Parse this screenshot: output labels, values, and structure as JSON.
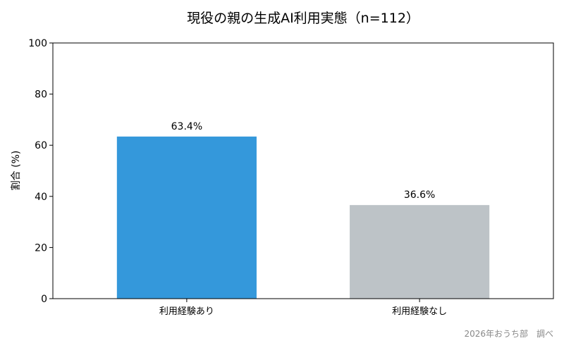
{
  "chart_data": {
    "type": "bar",
    "title": "現役の親の生成AI利用実態（n=112）",
    "xlabel": "",
    "ylabel": "割合 (%)",
    "ylim": [
      0,
      100
    ],
    "yticks": [
      0,
      20,
      40,
      60,
      80,
      100
    ],
    "categories": [
      "利用経験あり",
      "利用経験なし"
    ],
    "values": [
      63.4,
      36.6
    ],
    "data_labels": [
      "63.4%",
      "36.6%"
    ],
    "colors": [
      "#3498db",
      "#bdc3c7"
    ],
    "grid": false,
    "source_note": "2026年おうち部　調べ"
  }
}
